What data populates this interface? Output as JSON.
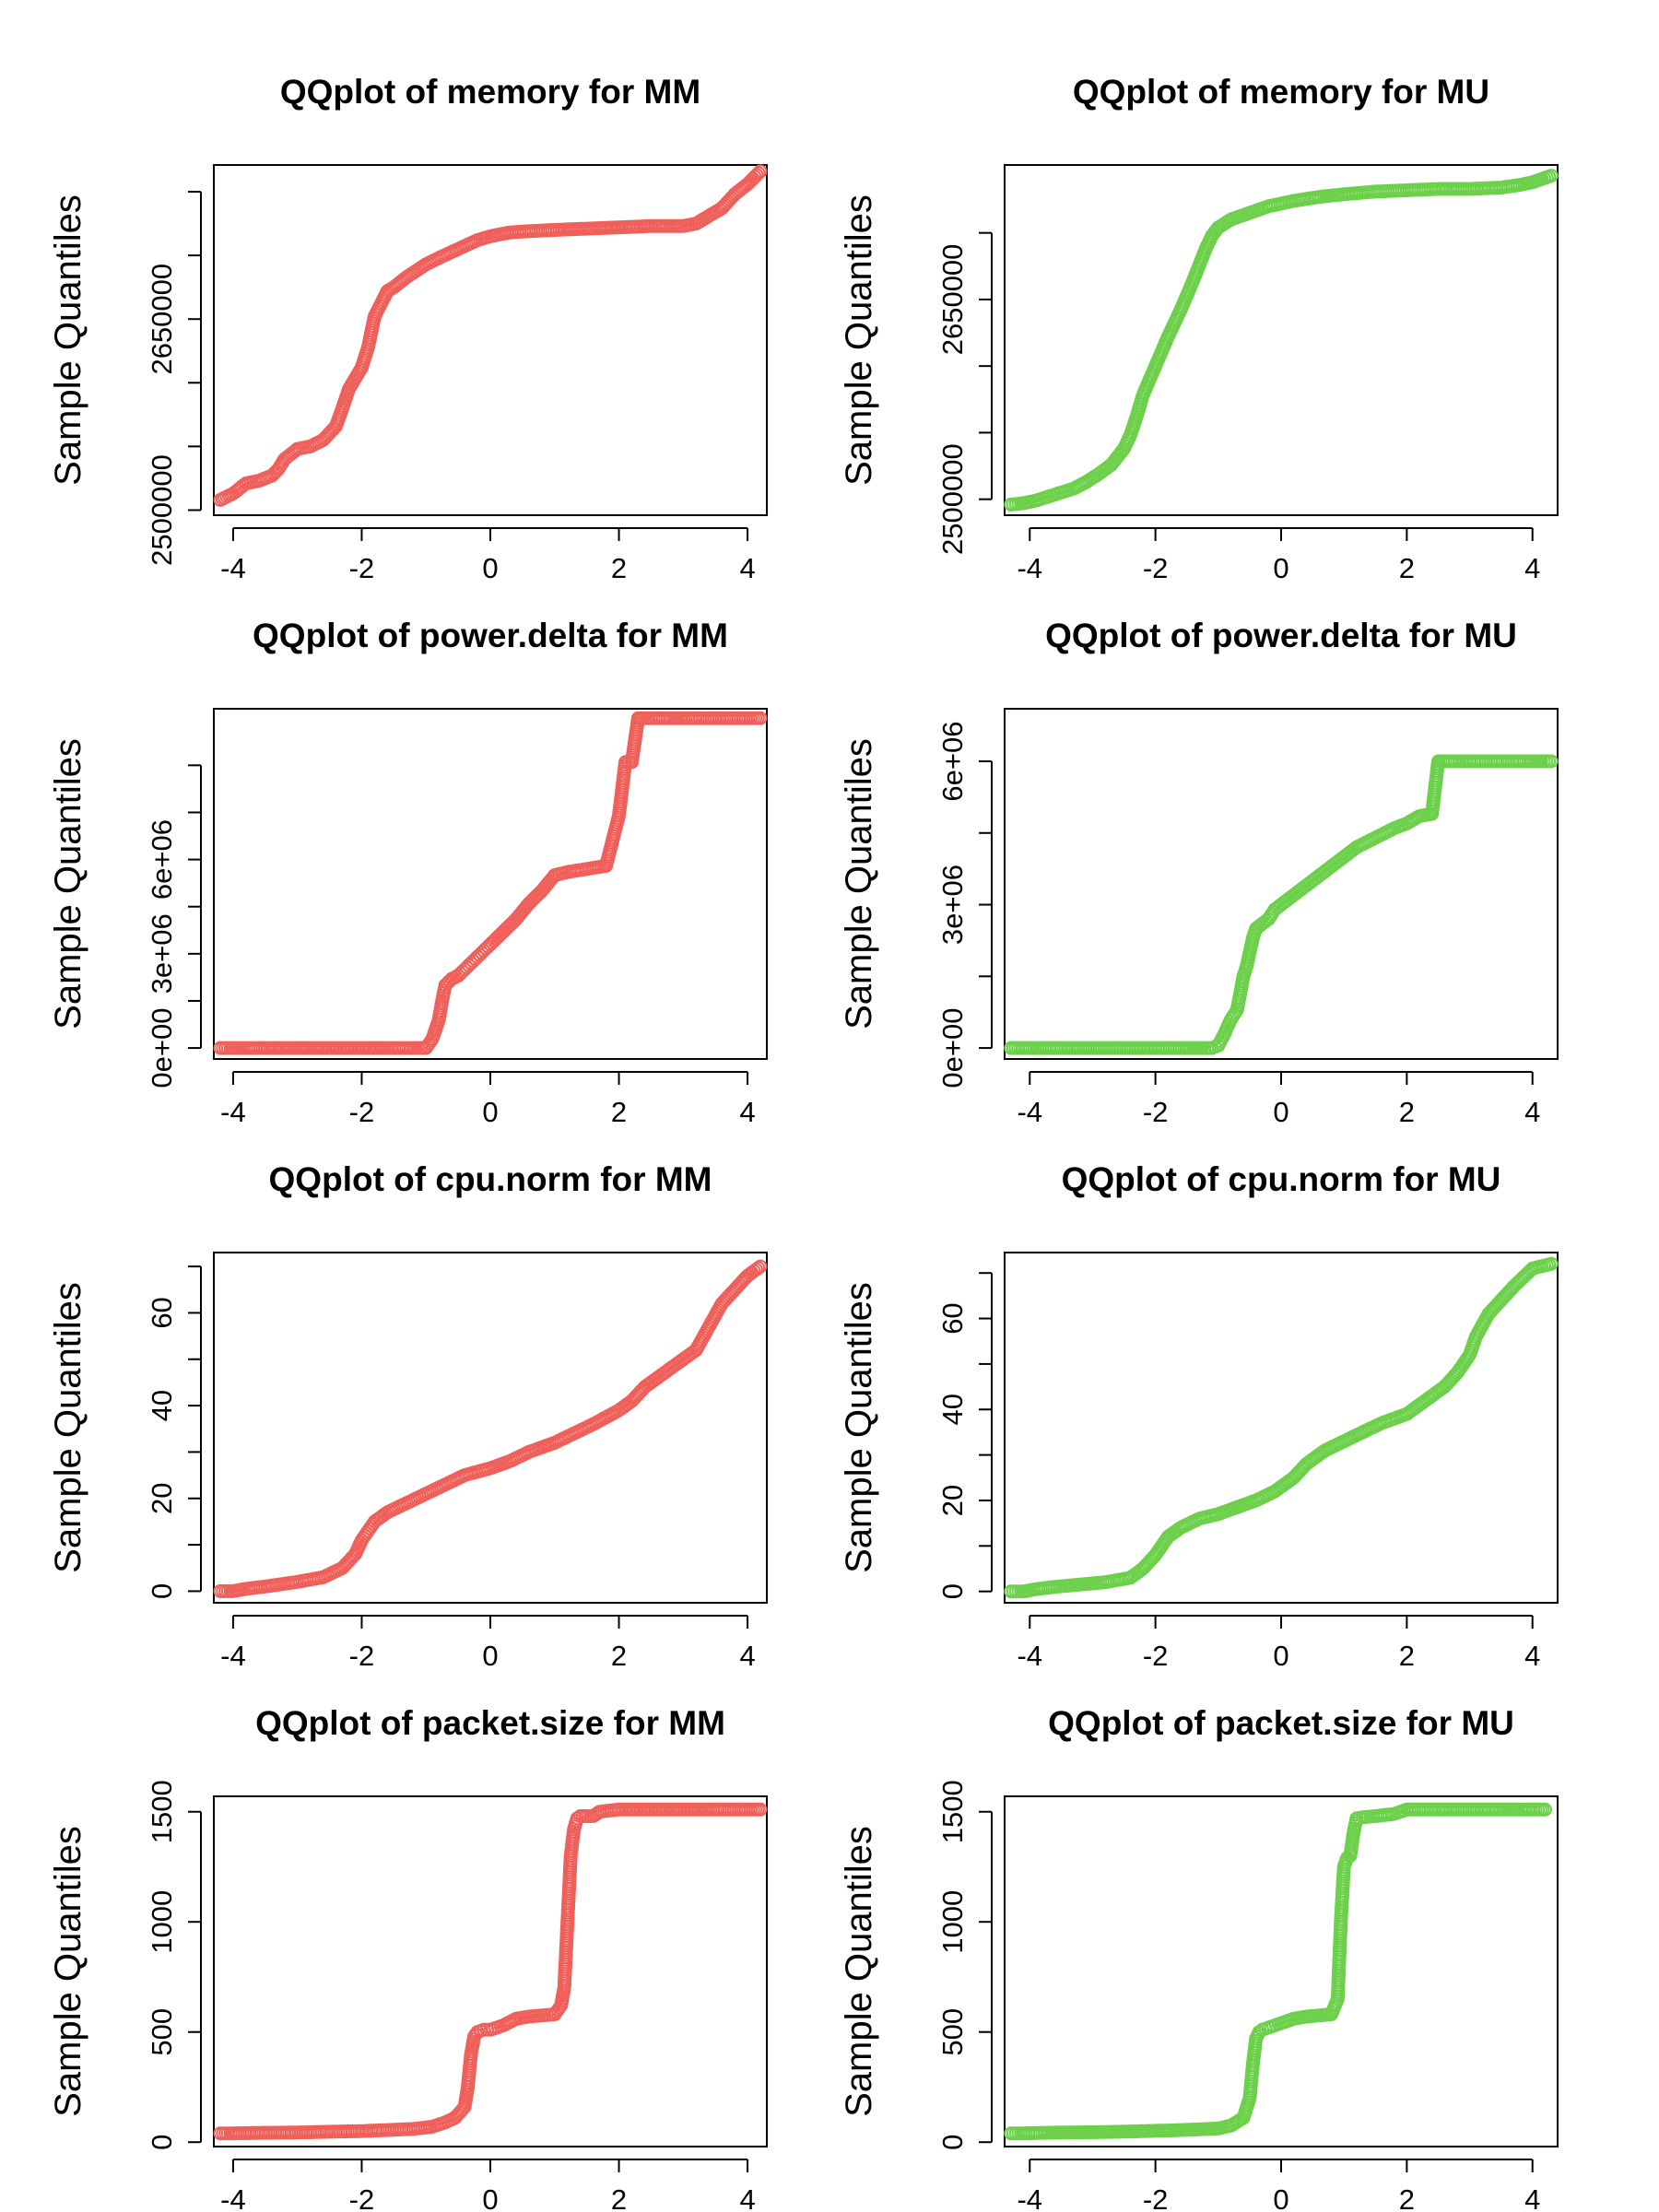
{
  "figure": {
    "colors": {
      "MM": "#F0605A",
      "MU": "#6CD04A"
    },
    "marker": "open-circle"
  },
  "chart_data": [
    {
      "type": "scatter",
      "title": "QQplot of memory for MM",
      "xlabel": "",
      "ylabel": "Sample Quantiles",
      "xlim": [
        -4.3,
        4.3
      ],
      "ylim": [
        2496000,
        2771000
      ],
      "xticks": [
        -4,
        -2,
        0,
        2,
        4
      ],
      "xtick_labels": [
        "-4",
        "-2",
        "0",
        "2",
        "4"
      ],
      "yticks": [
        2500000,
        2550000,
        2600000,
        2650000,
        2700000,
        2750000
      ],
      "ytick_labels": [
        "2500000",
        "",
        "",
        "2650000",
        "",
        ""
      ],
      "grid": false,
      "series": [
        {
          "color": "#F0605A",
          "x": [
            -4.2,
            -4.0,
            -3.9,
            -3.8,
            -3.6,
            -3.4,
            -3.3,
            -3.2,
            -3.0,
            -2.8,
            -2.6,
            -2.4,
            -2.3,
            -2.2,
            -2.0,
            -1.9,
            -1.8,
            -1.6,
            -1.5,
            -1.3,
            -1.0,
            -0.8,
            -0.5,
            -0.2,
            0.0,
            0.3,
            0.6,
            1.0,
            1.5,
            2.0,
            2.5,
            3.0,
            3.2,
            3.4,
            3.6,
            3.8,
            4.0,
            4.2
          ],
          "y": [
            2508000,
            2513000,
            2517000,
            2521000,
            2523000,
            2527000,
            2532000,
            2540000,
            2548000,
            2550000,
            2555000,
            2566000,
            2580000,
            2595000,
            2612000,
            2628000,
            2652000,
            2672000,
            2675000,
            2683000,
            2693000,
            2698000,
            2705000,
            2712000,
            2715000,
            2718000,
            2719000,
            2720000,
            2721000,
            2722000,
            2723000,
            2723000,
            2725000,
            2731000,
            2737000,
            2748000,
            2756000,
            2766000
          ]
        }
      ]
    },
    {
      "type": "scatter",
      "title": "QQplot of memory for MU",
      "xlabel": "",
      "ylabel": "Sample Quantiles",
      "xlim": [
        -4.4,
        4.4
      ],
      "ylim": [
        2488000,
        2751000
      ],
      "xticks": [
        -4,
        -2,
        0,
        2,
        4
      ],
      "xtick_labels": [
        "-4",
        "-2",
        "0",
        "2",
        "4"
      ],
      "yticks": [
        2500000,
        2550000,
        2600000,
        2650000,
        2700000
      ],
      "ytick_labels": [
        "2500000",
        "",
        "",
        "2650000",
        ""
      ],
      "grid": false,
      "series": [
        {
          "color": "#6CD04A",
          "x": [
            -4.3,
            -4.1,
            -3.9,
            -3.7,
            -3.5,
            -3.3,
            -3.1,
            -2.9,
            -2.7,
            -2.5,
            -2.4,
            -2.3,
            -2.2,
            -2.0,
            -1.8,
            -1.6,
            -1.4,
            -1.2,
            -1.1,
            -1.0,
            -0.8,
            -0.5,
            -0.2,
            0.2,
            0.6,
            1.0,
            1.5,
            2.0,
            2.5,
            3.0,
            3.5,
            3.8,
            4.0,
            4.3
          ],
          "y": [
            2496000,
            2497000,
            2499000,
            2502000,
            2505000,
            2508000,
            2513000,
            2519000,
            2526000,
            2538000,
            2548000,
            2562000,
            2578000,
            2600000,
            2622000,
            2642000,
            2664000,
            2688000,
            2698000,
            2704000,
            2710000,
            2715000,
            2720000,
            2724000,
            2727000,
            2729000,
            2731000,
            2732000,
            2733000,
            2733000,
            2734000,
            2736000,
            2738000,
            2743000
          ]
        }
      ]
    },
    {
      "type": "scatter",
      "title": "QQplot of power.delta for MM",
      "xlabel": "",
      "ylabel": "Sample Quantiles",
      "xlim": [
        -4.3,
        4.3
      ],
      "ylim": [
        -350000,
        10800000
      ],
      "xticks": [
        -4,
        -2,
        0,
        2,
        4
      ],
      "xtick_labels": [
        "-4",
        "-2",
        "0",
        "2",
        "4"
      ],
      "yticks": [
        0,
        1500000,
        3000000,
        4500000,
        6000000,
        7500000,
        9000000
      ],
      "ytick_labels": [
        "0e+00",
        "",
        "3e+06",
        "",
        "6e+06",
        "",
        ""
      ],
      "grid": false,
      "series": [
        {
          "color": "#F0605A",
          "x": [
            -4.2,
            -4.0,
            -3.8,
            -3.5,
            -3.0,
            -2.5,
            -2.0,
            -1.5,
            -1.2,
            -1.0,
            -0.9,
            -0.8,
            -0.75,
            -0.7,
            -0.6,
            -0.5,
            -0.4,
            -0.3,
            -0.2,
            -0.1,
            0.0,
            0.2,
            0.4,
            0.6,
            0.8,
            1.0,
            1.2,
            1.5,
            1.8,
            2.0,
            2.1,
            2.2,
            2.3,
            2.5,
            2.8,
            3.0,
            3.3,
            3.6,
            3.9,
            4.2
          ],
          "y": [
            0,
            0,
            0,
            0,
            0,
            0,
            0,
            0,
            0,
            0,
            300000,
            900000,
            1500000,
            2000000,
            2200000,
            2300000,
            2500000,
            2700000,
            2900000,
            3100000,
            3300000,
            3700000,
            4100000,
            4600000,
            5000000,
            5500000,
            5600000,
            5700000,
            5800000,
            7400000,
            9100000,
            9100000,
            10500000,
            10500000,
            10500000,
            10500000,
            10500000,
            10500000,
            10500000,
            10500000
          ]
        }
      ]
    },
    {
      "type": "scatter",
      "title": "QQplot of power.delta for MU",
      "xlabel": "",
      "ylabel": "Sample Quantiles",
      "xlim": [
        -4.4,
        4.4
      ],
      "ylim": [
        -230000,
        7100000
      ],
      "xticks": [
        -4,
        -2,
        0,
        2,
        4
      ],
      "xtick_labels": [
        "-4",
        "-2",
        "0",
        "2",
        "4"
      ],
      "yticks": [
        0,
        1500000,
        3000000,
        4500000,
        6000000
      ],
      "ytick_labels": [
        "0e+00",
        "",
        "3e+06",
        "",
        "6e+06"
      ],
      "grid": false,
      "series": [
        {
          "color": "#6CD04A",
          "x": [
            -4.3,
            -4.0,
            -3.8,
            -3.5,
            -3.0,
            -2.5,
            -2.0,
            -1.5,
            -1.1,
            -1.0,
            -0.9,
            -0.8,
            -0.7,
            -0.6,
            -0.55,
            -0.5,
            -0.45,
            -0.4,
            -0.3,
            -0.2,
            -0.1,
            0.0,
            0.2,
            0.4,
            0.6,
            0.8,
            1.0,
            1.2,
            1.5,
            1.8,
            2.0,
            2.2,
            2.4,
            2.5,
            2.8,
            3.0,
            3.3,
            3.6,
            3.9,
            4.3
          ],
          "y": [
            0,
            0,
            0,
            0,
            0,
            0,
            0,
            0,
            0,
            50000,
            300000,
            600000,
            800000,
            1500000,
            1700000,
            2000000,
            2300000,
            2500000,
            2600000,
            2700000,
            2900000,
            3000000,
            3200000,
            3400000,
            3600000,
            3800000,
            4000000,
            4200000,
            4400000,
            4600000,
            4700000,
            4850000,
            4900000,
            6000000,
            6000000,
            6000000,
            6000000,
            6000000,
            6000000,
            6000000
          ]
        }
      ]
    },
    {
      "type": "scatter",
      "title": "QQplot of cpu.norm for MM",
      "xlabel": "",
      "ylabel": "Sample Quantiles",
      "xlim": [
        -4.3,
        4.3
      ],
      "ylim": [
        -2.5,
        73
      ],
      "xticks": [
        -4,
        -2,
        0,
        2,
        4
      ],
      "xtick_labels": [
        "-4",
        "-2",
        "0",
        "2",
        "4"
      ],
      "yticks": [
        0,
        10,
        20,
        30,
        40,
        50,
        60,
        70
      ],
      "ytick_labels": [
        "0",
        "",
        "20",
        "",
        "40",
        "",
        "60",
        ""
      ],
      "grid": false,
      "series": [
        {
          "color": "#F0605A",
          "x": [
            -4.2,
            -4.0,
            -3.8,
            -3.5,
            -3.0,
            -2.6,
            -2.3,
            -2.1,
            -2.0,
            -1.9,
            -1.8,
            -1.6,
            -1.3,
            -1.0,
            -0.7,
            -0.4,
            0.0,
            0.3,
            0.6,
            1.0,
            1.3,
            1.6,
            2.0,
            2.2,
            2.4,
            2.6,
            2.8,
            3.0,
            3.2,
            3.4,
            3.6,
            3.8,
            4.0,
            4.2
          ],
          "y": [
            0,
            0,
            0.5,
            1,
            2,
            3,
            5,
            8,
            11,
            13,
            15,
            17,
            19,
            21,
            23,
            25,
            26.5,
            28,
            30,
            32,
            34,
            36,
            39,
            41,
            44,
            46,
            48,
            50,
            52,
            57,
            62,
            65,
            68,
            70
          ]
        }
      ]
    },
    {
      "type": "scatter",
      "title": "QQplot of cpu.norm for MU",
      "xlabel": "",
      "ylabel": "Sample Quantiles",
      "xlim": [
        -4.4,
        4.4
      ],
      "ylim": [
        -2.5,
        74.5
      ],
      "xticks": [
        -4,
        -2,
        0,
        2,
        4
      ],
      "xtick_labels": [
        "-4",
        "-2",
        "0",
        "2",
        "4"
      ],
      "yticks": [
        0,
        10,
        20,
        30,
        40,
        50,
        60,
        70
      ],
      "ytick_labels": [
        "0",
        "",
        "20",
        "",
        "40",
        "",
        "60",
        ""
      ],
      "grid": false,
      "series": [
        {
          "color": "#6CD04A",
          "x": [
            -4.3,
            -4.1,
            -3.9,
            -3.6,
            -3.2,
            -2.8,
            -2.4,
            -2.2,
            -2.0,
            -1.8,
            -1.6,
            -1.3,
            -1.0,
            -0.7,
            -0.4,
            -0.1,
            0.2,
            0.4,
            0.7,
            1.0,
            1.3,
            1.6,
            2.0,
            2.3,
            2.6,
            2.8,
            3.0,
            3.1,
            3.3,
            3.5,
            3.7,
            4.0,
            4.3
          ],
          "y": [
            0,
            0,
            0.5,
            1,
            1.5,
            2,
            3,
            5,
            8,
            12,
            14,
            16,
            17,
            18.5,
            20,
            22,
            25,
            28,
            31,
            33,
            35,
            37,
            39,
            42,
            45,
            48,
            52,
            56,
            61,
            64,
            67,
            71,
            72
          ]
        }
      ]
    },
    {
      "type": "scatter",
      "title": "QQplot of packet.size for MM",
      "xlabel": "",
      "ylabel": "Sample Quantiles",
      "xlim": [
        -4.3,
        4.3
      ],
      "ylim": [
        -20,
        1570
      ],
      "xticks": [
        -4,
        -2,
        0,
        2,
        4
      ],
      "xtick_labels": [
        "-4",
        "-2",
        "0",
        "2",
        "4"
      ],
      "yticks": [
        0,
        500,
        1000,
        1500
      ],
      "ytick_labels": [
        "0",
        "500",
        "1000",
        "1500"
      ],
      "grid": false,
      "series": [
        {
          "color": "#F0605A",
          "x": [
            -4.2,
            -4.0,
            -3.6,
            -3.2,
            -2.8,
            -2.4,
            -2.0,
            -1.6,
            -1.2,
            -0.9,
            -0.7,
            -0.55,
            -0.4,
            -0.35,
            -0.3,
            -0.25,
            -0.2,
            -0.1,
            0.0,
            0.2,
            0.4,
            0.6,
            0.8,
            1.0,
            1.1,
            1.15,
            1.2,
            1.25,
            1.3,
            1.35,
            1.4,
            1.6,
            1.7,
            2.0,
            2.5,
            3.0,
            3.5,
            3.9,
            4.2
          ],
          "y": [
            40,
            40,
            42,
            43,
            45,
            48,
            50,
            55,
            60,
            70,
            90,
            110,
            160,
            250,
            400,
            480,
            500,
            510,
            510,
            530,
            560,
            570,
            575,
            580,
            620,
            700,
            1000,
            1300,
            1420,
            1470,
            1480,
            1480,
            1500,
            1510,
            1510,
            1510,
            1510,
            1510,
            1510
          ]
        }
      ]
    },
    {
      "type": "scatter",
      "title": "QQplot of packet.size for MU",
      "xlabel": "",
      "ylabel": "Sample Quantiles",
      "xlim": [
        -4.4,
        4.4
      ],
      "ylim": [
        -20,
        1570
      ],
      "xticks": [
        -4,
        -2,
        0,
        2,
        4
      ],
      "xtick_labels": [
        "-4",
        "-2",
        "0",
        "2",
        "4"
      ],
      "yticks": [
        0,
        500,
        1000,
        1500
      ],
      "ytick_labels": [
        "0",
        "500",
        "1000",
        "1500"
      ],
      "grid": false,
      "series": [
        {
          "color": "#6CD04A",
          "x": [
            -4.3,
            -4.1,
            -3.8,
            -3.4,
            -3.0,
            -2.6,
            -2.2,
            -1.8,
            -1.4,
            -1.0,
            -0.8,
            -0.6,
            -0.5,
            -0.45,
            -0.4,
            -0.35,
            -0.3,
            -0.2,
            0.0,
            0.2,
            0.4,
            0.6,
            0.8,
            0.9,
            0.95,
            1.0,
            1.05,
            1.1,
            1.15,
            1.2,
            1.3,
            1.5,
            1.8,
            2.0,
            2.5,
            3.0,
            3.5,
            3.9,
            4.2
          ],
          "y": [
            40,
            40,
            42,
            44,
            45,
            47,
            50,
            53,
            57,
            62,
            75,
            110,
            200,
            350,
            470,
            500,
            510,
            520,
            540,
            560,
            570,
            575,
            580,
            650,
            1000,
            1250,
            1290,
            1300,
            1400,
            1470,
            1475,
            1480,
            1490,
            1510,
            1510,
            1510,
            1510,
            1510,
            1510
          ]
        }
      ]
    }
  ]
}
